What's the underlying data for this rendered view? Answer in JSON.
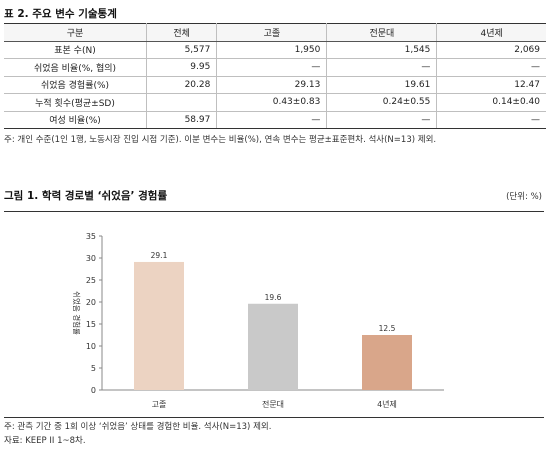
{
  "table_title": "표 2. 주요 변수 기술통계",
  "table": {
    "headers": [
      "구분",
      "전체",
      "고졸",
      "전문대",
      "4년제"
    ],
    "rows": [
      {
        "label": "표본 수(N)",
        "cells": [
          "5,577",
          "1,950",
          "1,545",
          "2,069"
        ]
      },
      {
        "label": "쉬었음 비율(%, 협의)",
        "cells": [
          "9.95",
          "—",
          "—",
          "—"
        ]
      },
      {
        "label": "쉬었음 경험률(%)",
        "cells": [
          "20.28",
          "29.13",
          "19.61",
          "12.47"
        ]
      },
      {
        "label": "누적 횟수(평균±SD)",
        "cells": [
          "",
          "0.43±0.83",
          "0.24±0.55",
          "0.14±0.40"
        ]
      },
      {
        "label": "여성 비율(%)",
        "cells": [
          "58.97",
          "—",
          "—",
          "—"
        ]
      }
    ]
  },
  "table_note": "주: 개인 수준(1인 1행, 노동시장 진입 시점 기준). 이분 변수는 비율(%), 연속 변수는 평균±표준편차. 석사(N=13) 제외.",
  "figure_title": "그림 1. 학력 경로별 ‘쉬었음’ 경험률",
  "unit": "(단위: %)",
  "chart_data": {
    "type": "bar",
    "categories": [
      "고졸",
      "전문대",
      "4년제"
    ],
    "values": [
      29.1,
      19.6,
      12.5
    ],
    "data_labels": [
      "29.1",
      "19.6",
      "12.5"
    ],
    "colors": [
      "#ecd3c2",
      "#c9c9c9",
      "#d9a68a"
    ],
    "ylabel": "쉬었음 경험률",
    "ylim": [
      0,
      35
    ],
    "yticks": [
      0,
      5,
      10,
      15,
      20,
      25,
      30,
      35
    ],
    "grid": false
  },
  "figure_note": "주: 관측 기간 중 1회 이상 ‘쉬었음’ 상태를 경험한 비율. 석사(N=13) 제외.",
  "source": "자료: KEEP II 1~8차."
}
